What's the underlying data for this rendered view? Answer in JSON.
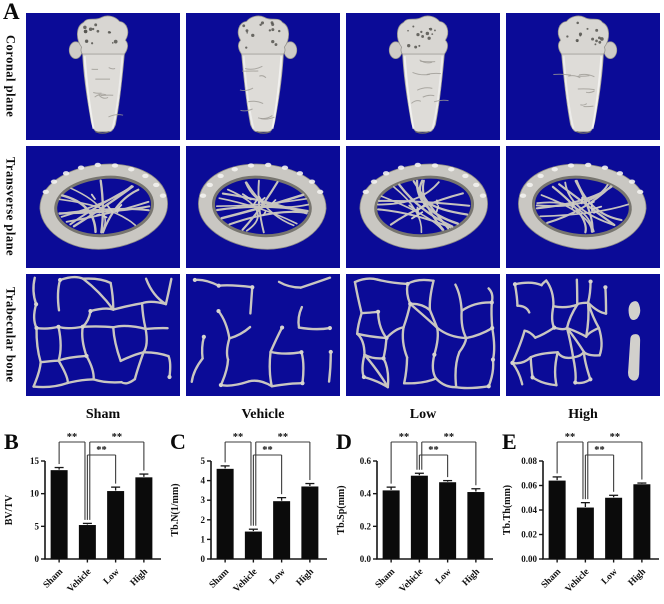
{
  "panelA": {
    "label": "A",
    "row_labels": [
      "Coronal plane",
      "Transverse plane",
      "Trabecular bone"
    ],
    "column_labels": [
      "Sham",
      "Vehicle",
      "Low",
      "High"
    ],
    "image_bg_color": "#0b0b97",
    "bone_color": "#d6d4d0"
  },
  "style": {
    "bar_color": "#0b0b0b",
    "axis_color": "#161616",
    "sig_color": "#3c3c3c"
  },
  "chart_data": [
    {
      "panel_label": "B",
      "type": "bar",
      "ylabel": "BV/TV",
      "categories": [
        "Sham",
        "Vehicle",
        "Low",
        "High"
      ],
      "values": [
        13.6,
        5.2,
        10.4,
        12.5
      ],
      "errors": [
        0.4,
        0.25,
        0.6,
        0.5
      ],
      "ylim": [
        0,
        15
      ],
      "yticks": [
        {
          "v": 0,
          "t": "0"
        },
        {
          "v": 5,
          "t": "5"
        },
        {
          "v": 10,
          "t": "10"
        },
        {
          "v": 15,
          "t": "15"
        }
      ],
      "significance": [
        {
          "from": 0,
          "to": 1,
          "label": "**",
          "level": 2
        },
        {
          "from": 1,
          "to": 2,
          "label": "**",
          "level": 1
        },
        {
          "from": 1,
          "to": 3,
          "label": "**",
          "level": 2
        }
      ]
    },
    {
      "panel_label": "C",
      "type": "bar",
      "ylabel": "Tb.N(1/mm)",
      "categories": [
        "Sham",
        "Vehicle",
        "Low",
        "High"
      ],
      "values": [
        4.6,
        1.4,
        2.95,
        3.7
      ],
      "errors": [
        0.15,
        0.12,
        0.18,
        0.15
      ],
      "ylim": [
        0,
        5
      ],
      "yticks": [
        {
          "v": 0,
          "t": "0"
        },
        {
          "v": 1,
          "t": "1"
        },
        {
          "v": 2,
          "t": "2"
        },
        {
          "v": 3,
          "t": "3"
        },
        {
          "v": 4,
          "t": "4"
        },
        {
          "v": 5,
          "t": "5"
        }
      ],
      "significance": [
        {
          "from": 0,
          "to": 1,
          "label": "**",
          "level": 2
        },
        {
          "from": 1,
          "to": 2,
          "label": "**",
          "level": 1
        },
        {
          "from": 1,
          "to": 3,
          "label": "**",
          "level": 2
        }
      ]
    },
    {
      "panel_label": "D",
      "type": "bar",
      "ylabel": "Tb.Sp(mm)",
      "categories": [
        "Sham",
        "Vehicle",
        "Low",
        "High"
      ],
      "values": [
        0.42,
        0.51,
        0.47,
        0.41
      ],
      "errors": [
        0.02,
        0.015,
        0.01,
        0.02
      ],
      "ylim": [
        0,
        0.6
      ],
      "yticks": [
        {
          "v": 0,
          "t": "0.0"
        },
        {
          "v": 0.2,
          "t": "0.2"
        },
        {
          "v": 0.4,
          "t": "0.4"
        },
        {
          "v": 0.6,
          "t": "0.6"
        }
      ],
      "significance": [
        {
          "from": 0,
          "to": 1,
          "label": "**",
          "level": 2
        },
        {
          "from": 1,
          "to": 2,
          "label": "**",
          "level": 1
        },
        {
          "from": 1,
          "to": 3,
          "label": "**",
          "level": 2
        }
      ]
    },
    {
      "panel_label": "E",
      "type": "bar",
      "ylabel": "Tb.Th(mm)",
      "categories": [
        "Sham",
        "Vehicle",
        "Low",
        "High"
      ],
      "values": [
        0.064,
        0.042,
        0.05,
        0.061
      ],
      "errors": [
        0.003,
        0.004,
        0.002,
        0.001
      ],
      "ylim": [
        0,
        0.08
      ],
      "yticks": [
        {
          "v": 0,
          "t": "0.00"
        },
        {
          "v": 0.02,
          "t": "0.02"
        },
        {
          "v": 0.04,
          "t": "0.04"
        },
        {
          "v": 0.06,
          "t": "0.06"
        },
        {
          "v": 0.08,
          "t": "0.08"
        }
      ],
      "significance": [
        {
          "from": 0,
          "to": 1,
          "label": "**",
          "level": 2
        },
        {
          "from": 1,
          "to": 2,
          "label": "**",
          "level": 1
        },
        {
          "from": 1,
          "to": 3,
          "label": "**",
          "level": 2
        }
      ]
    }
  ]
}
